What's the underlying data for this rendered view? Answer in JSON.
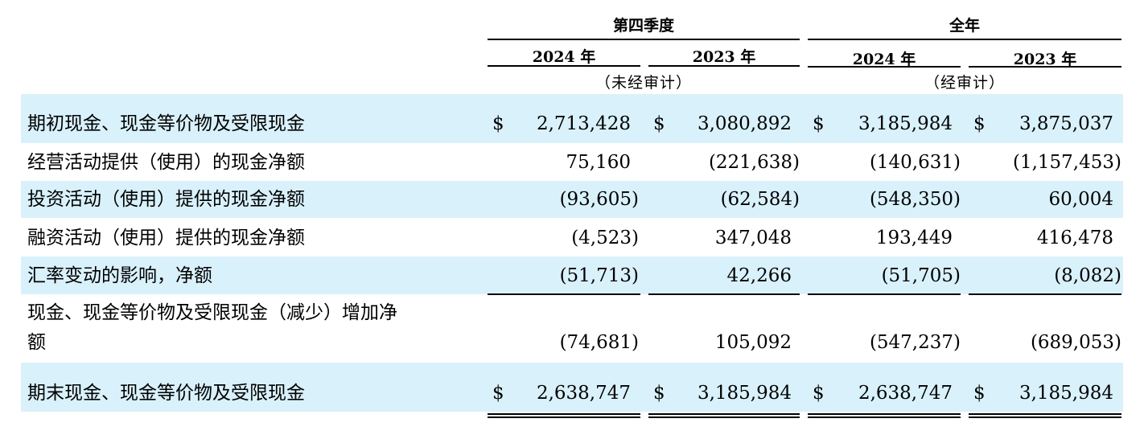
{
  "header": {
    "q4_label": "第四季度",
    "fy_label": "全年",
    "years": [
      "2024 年",
      "2023 年",
      "2024 年",
      "2023 年"
    ],
    "q4_note": "（未经审计）",
    "fy_note": "（经审计）"
  },
  "currency": "$",
  "rows": [
    {
      "label": "期初现金、现金等价物及受限现金",
      "values": [
        "2,713,428",
        "3,080,892",
        "3,185,984",
        "3,875,037"
      ]
    },
    {
      "label": "经营活动提供（使用）的现金净额",
      "values": [
        "75,160",
        "(221,638)",
        "(140,631)",
        "(1,157,453)"
      ]
    },
    {
      "label": "投资活动（使用）提供的现金净额",
      "values": [
        "(93,605)",
        "(62,584)",
        "(548,350)",
        "60,004"
      ]
    },
    {
      "label": "融资活动（使用）提供的现金净额",
      "values": [
        "(4,523)",
        "347,048",
        "193,449",
        "416,478"
      ]
    },
    {
      "label": "汇率变动的影响，净额",
      "values": [
        "(51,713)",
        "42,266",
        "(51,705)",
        "(8,082)"
      ]
    },
    {
      "label_line1": "现金、现金等价物及受限现金（减少）增加净",
      "label_line2": "额",
      "values": [
        "(74,681)",
        "105,092",
        "(547,237)",
        "(689,053)"
      ]
    },
    {
      "label": "期末现金、现金等价物及受限现金",
      "values": [
        "2,638,747",
        "3,185,984",
        "2,638,747",
        "3,185,984"
      ]
    }
  ]
}
